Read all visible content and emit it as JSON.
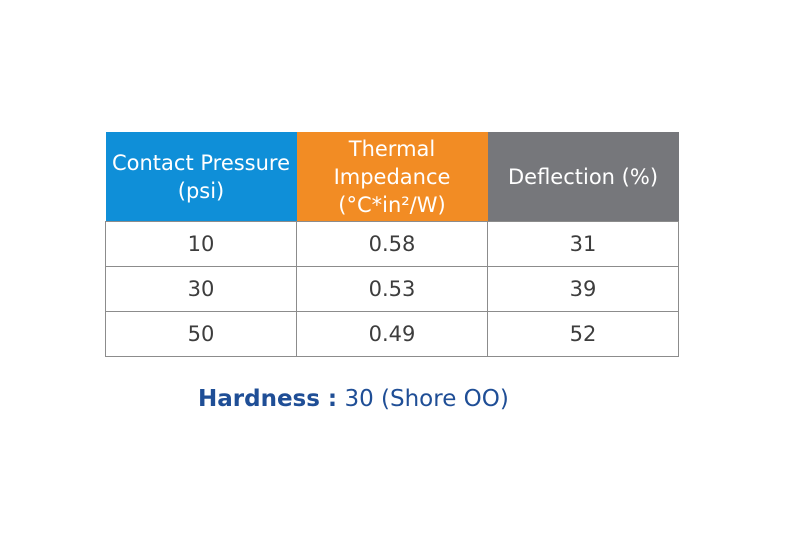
{
  "table": {
    "headers": [
      {
        "label": "Contact Pressure (psi)",
        "color": "#0f8fd8"
      },
      {
        "label": "Thermal Impedance (°C*in²/W)",
        "color": "#f28c24"
      },
      {
        "label": "Deflection (%)",
        "color": "#76777b"
      }
    ],
    "rows": [
      [
        "10",
        "0.58",
        "31"
      ],
      [
        "30",
        "0.53",
        "39"
      ],
      [
        "50",
        "0.49",
        "52"
      ]
    ]
  },
  "note": {
    "label": "Hardness :",
    "value": "30 (Shore OO)"
  }
}
